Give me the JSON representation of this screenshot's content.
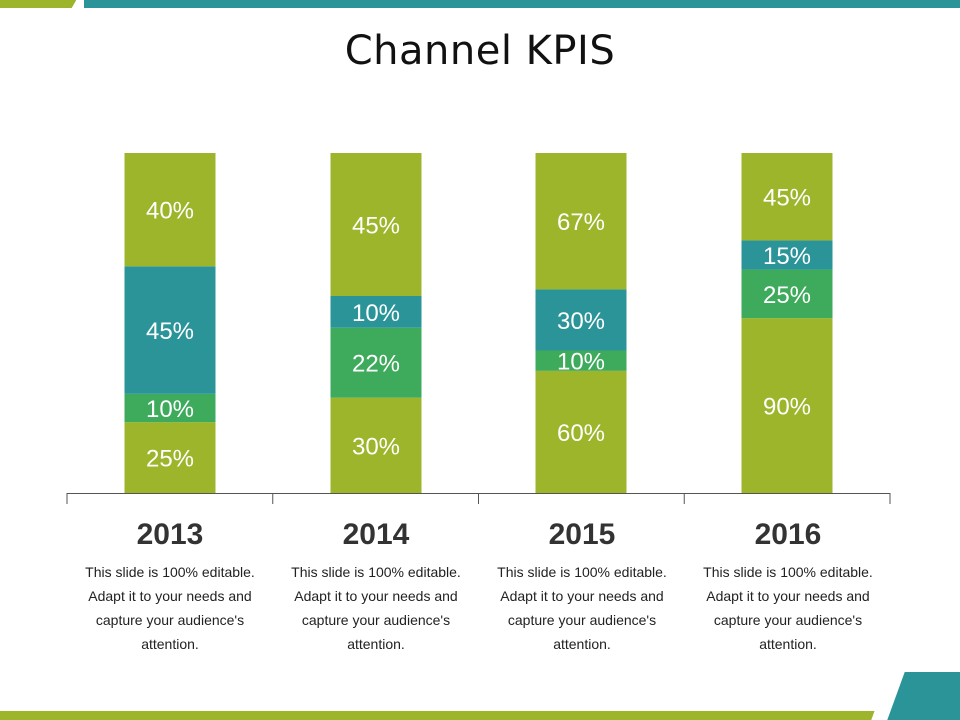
{
  "title": "Channel KPIS",
  "colors": {
    "olive": "#9cb52b",
    "teal": "#2a9499",
    "green": "#3daa5c"
  },
  "chart_data": {
    "type": "bar",
    "stacked": true,
    "categories": [
      "2013",
      "2014",
      "2015",
      "2016"
    ],
    "segment_order": "bottom-to-top",
    "columns": [
      {
        "label": "2013",
        "segments": [
          {
            "value": 25,
            "label": "25%",
            "color": "#9cb52b"
          },
          {
            "value": 10,
            "label": "10%",
            "color": "#3daa5c"
          },
          {
            "value": 45,
            "label": "45%",
            "color": "#2a9499"
          },
          {
            "value": 40,
            "label": "40%",
            "color": "#9cb52b"
          }
        ]
      },
      {
        "label": "2014",
        "segments": [
          {
            "value": 30,
            "label": "30%",
            "color": "#9cb52b"
          },
          {
            "value": 22,
            "label": "22%",
            "color": "#3daa5c"
          },
          {
            "value": 10,
            "label": "10%",
            "color": "#2a9499"
          },
          {
            "value": 45,
            "label": "45%",
            "color": "#9cb52b"
          }
        ]
      },
      {
        "label": "2015",
        "segments": [
          {
            "value": 60,
            "label": "60%",
            "color": "#9cb52b"
          },
          {
            "value": 10,
            "label": "10%",
            "color": "#3daa5c"
          },
          {
            "value": 30,
            "label": "30%",
            "color": "#2a9499"
          },
          {
            "value": 67,
            "label": "67%",
            "color": "#9cb52b"
          }
        ]
      },
      {
        "label": "2016",
        "segments": [
          {
            "value": 90,
            "label": "90%",
            "color": "#9cb52b"
          },
          {
            "value": 25,
            "label": "25%",
            "color": "#3daa5c"
          },
          {
            "value": 15,
            "label": "15%",
            "color": "#2a9499"
          },
          {
            "value": 45,
            "label": "45%",
            "color": "#9cb52b"
          }
        ]
      }
    ],
    "note": "each column is drawn at full height; segments are proportional to their values within the column"
  },
  "columns": [
    {
      "year": "2013",
      "desc": [
        "This slide is 100% editable.",
        "Adapt it to your needs and",
        "capture your audience's",
        "attention."
      ]
    },
    {
      "year": "2014",
      "desc": [
        "This slide is 100% editable.",
        "Adapt it to your needs and",
        "capture your audience's",
        "attention."
      ]
    },
    {
      "year": "2015",
      "desc": [
        "This slide is 100% editable.",
        "Adapt it to your needs and",
        "capture your audience's",
        "attention."
      ]
    },
    {
      "year": "2016",
      "desc": [
        "This slide is 100% editable.",
        "Adapt it to your needs and",
        "capture your audience's",
        "attention."
      ]
    }
  ]
}
